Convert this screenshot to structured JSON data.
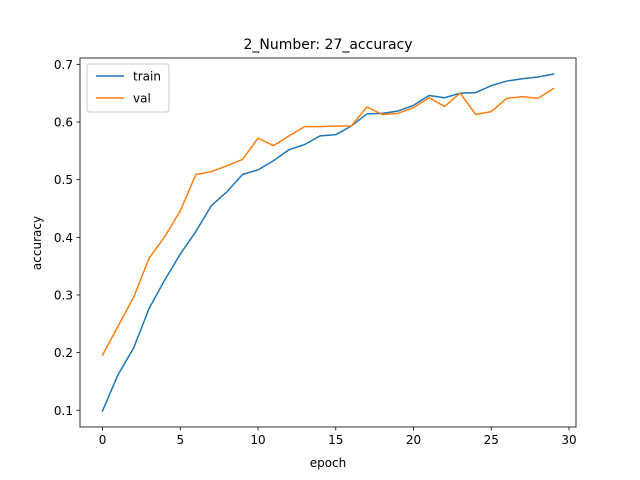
{
  "chart_data": {
    "type": "line",
    "title": "2_Number: 27_accuracy",
    "xlabel": "epoch",
    "ylabel": "accuracy",
    "xlim": [
      -1.45,
      30.45
    ],
    "ylim": [
      0.071,
      0.711
    ],
    "xticks": [
      0,
      5,
      10,
      15,
      20,
      25,
      30
    ],
    "yticks": [
      0.1,
      0.2,
      0.3,
      0.4,
      0.5,
      0.6,
      0.7
    ],
    "grid": false,
    "legend_position": "upper-left",
    "x": [
      0,
      1,
      2,
      3,
      4,
      5,
      6,
      7,
      8,
      9,
      10,
      11,
      12,
      13,
      14,
      15,
      16,
      17,
      18,
      19,
      20,
      21,
      22,
      23,
      24,
      25,
      26,
      27,
      28,
      29
    ],
    "series": [
      {
        "name": "train",
        "color": "#1f77b4",
        "values": [
          0.099,
          0.162,
          0.208,
          0.277,
          0.326,
          0.371,
          0.41,
          0.455,
          0.479,
          0.509,
          0.517,
          0.533,
          0.552,
          0.561,
          0.576,
          0.578,
          0.593,
          0.614,
          0.615,
          0.619,
          0.629,
          0.646,
          0.642,
          0.65,
          0.651,
          0.663,
          0.671,
          0.675,
          0.678,
          0.683
        ]
      },
      {
        "name": "val",
        "color": "#ff7f0e",
        "values": [
          0.196,
          0.246,
          0.296,
          0.364,
          0.401,
          0.446,
          0.509,
          0.514,
          0.524,
          0.535,
          0.572,
          0.559,
          0.576,
          0.592,
          0.592,
          0.593,
          0.593,
          0.626,
          0.613,
          0.615,
          0.625,
          0.642,
          0.627,
          0.65,
          0.613,
          0.618,
          0.641,
          0.644,
          0.641,
          0.658
        ]
      }
    ]
  }
}
